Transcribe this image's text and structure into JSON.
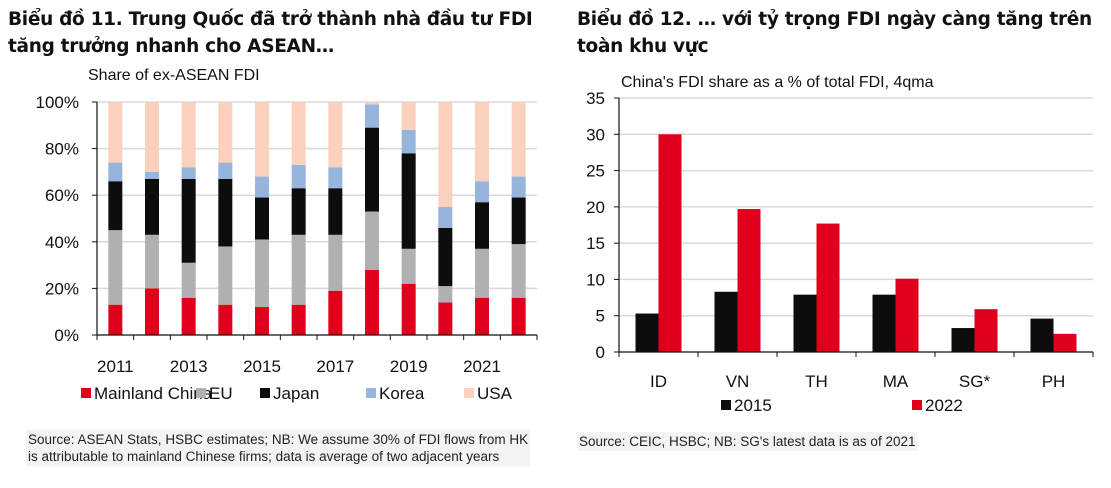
{
  "headings": {
    "left": "Biểu đồ 11. Trung Quốc đã trở thành nhà đầu tư FDI tăng trưởng nhanh cho ASEAN…",
    "right": "Biểu đồ 12. … với tỷ trọng FDI ngày càng tăng trên toàn khu vực"
  },
  "sources": {
    "left_line1": "Source: ASEAN Stats, HSBC estimates; NB: We assume 30% of FDI flows from HK",
    "left_line2": "is attributable to mainland Chinese firms; data is average of two adjacent years",
    "right": "Source: CEIC, HSBC; NB: SG's latest data is as of 2021"
  },
  "chart_data": [
    {
      "type": "bar",
      "stacked": true,
      "title": "Share of ex-ASEAN FDI",
      "xlabel": "",
      "ylabel": "",
      "ylim": [
        0,
        100
      ],
      "yticks": [
        "0%",
        "20%",
        "40%",
        "60%",
        "80%",
        "100%"
      ],
      "grid": true,
      "categories": [
        "2011",
        "2012",
        "2013",
        "2014",
        "2015",
        "2016",
        "2017",
        "2018",
        "2019",
        "2020",
        "2021",
        "2022"
      ],
      "xtick_labels": [
        "2011",
        "2013",
        "2015",
        "2017",
        "2019",
        "2021"
      ],
      "legend_position": "bottom",
      "series": [
        {
          "name": "Mainland China",
          "color": "#e0001b",
          "values": [
            13,
            20,
            16,
            13,
            12,
            13,
            19,
            28,
            22,
            14,
            16,
            16
          ]
        },
        {
          "name": "EU",
          "color": "#b0b0b0",
          "values": [
            32,
            23,
            15,
            25,
            29,
            30,
            24,
            25,
            15,
            7,
            21,
            23
          ]
        },
        {
          "name": "Japan",
          "color": "#0d0d0d",
          "values": [
            21,
            24,
            36,
            29,
            18,
            20,
            20,
            36,
            41,
            25,
            20,
            20
          ]
        },
        {
          "name": "Korea",
          "color": "#96b4dc",
          "values": [
            8,
            3,
            5,
            7,
            9,
            10,
            9,
            10,
            10,
            9,
            9,
            9
          ]
        },
        {
          "name": "USA",
          "color": "#fbd0bc",
          "values": [
            26,
            30,
            28,
            26,
            32,
            27,
            28,
            1,
            12,
            45,
            34,
            32
          ]
        }
      ]
    },
    {
      "type": "bar",
      "title": "China's FDI share as a % of total  FDI, 4qma",
      "xlabel": "",
      "ylabel": "",
      "ylim": [
        0,
        35
      ],
      "yticks": [
        "0",
        "5",
        "10",
        "15",
        "20",
        "25",
        "30",
        "35"
      ],
      "grid": true,
      "categories": [
        "ID",
        "VN",
        "TH",
        "MA",
        "SG*",
        "PH"
      ],
      "legend_position": "bottom",
      "series": [
        {
          "name": "2015",
          "color": "#0d0d0d",
          "values": [
            5.3,
            8.3,
            7.9,
            7.9,
            3.3,
            4.6
          ]
        },
        {
          "name": "2022",
          "color": "#e0001b",
          "values": [
            30.0,
            19.7,
            17.7,
            10.1,
            5.9,
            2.5
          ]
        }
      ]
    }
  ]
}
